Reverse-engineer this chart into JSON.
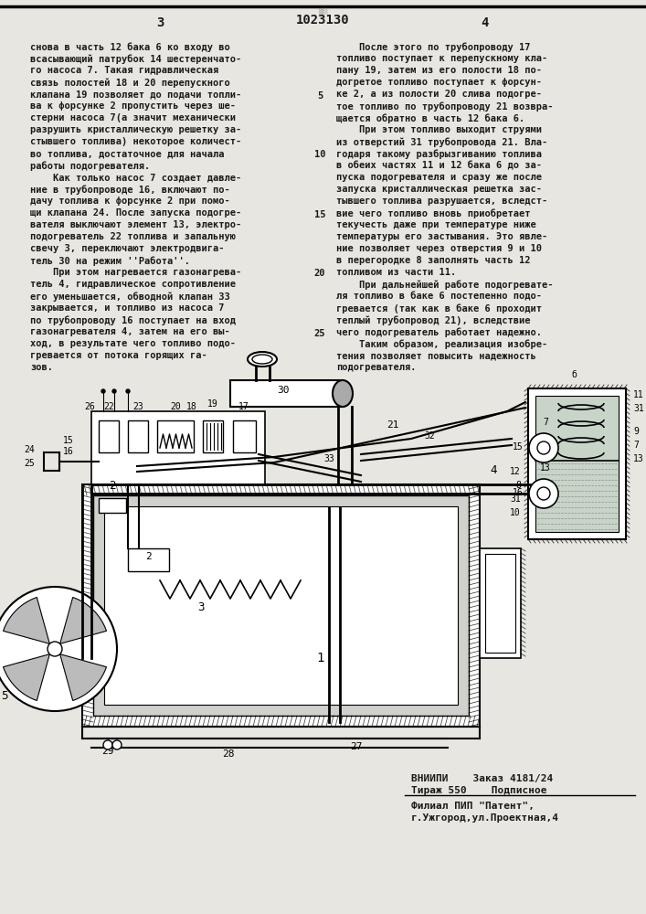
{
  "patent_number": "1023130",
  "page_left": "3",
  "page_right": "4",
  "bg_color": "#e8e6e0",
  "text_color": "#1a1a1a",
  "left_col_lines": [
    "снова в часть 12 бака 6 ко входу во",
    "всасывающий патрубок 14 шестеренчато-",
    "го насоса 7. Такая гидравлическая",
    "связь полостей 18 и 20 перепускного",
    "клапана 19 позволяет до подачи топли-",
    "ва к форсунке 2 пропустить через ше-",
    "стерни насоса 7(а значит механически",
    "разрушить кристаллическую решетку за-",
    "стывшего топлива) некоторое количест-",
    "во топлива, достаточное для начала",
    "работы подогревателя.",
    "    Как только насос 7 создает давле-",
    "ние в трубопроводе 16, включают по-",
    "дачу топлива к форсунке 2 при помо-",
    "щи клапана 24. После запуска подогре-",
    "вателя выключают элемент 13, электро-",
    "подогреватель 22 топлива и запальную",
    "свечу 3, переключают электродвига-",
    "тель 30 на режим ''Работа''.",
    "    При этом нагревается газонагрева-",
    "тель 4, гидравлическое сопротивление",
    "его уменьшается, обводной клапан 33",
    "закрывается, и топливо из насоса 7",
    "по трубопроводу 16 поступает на вход",
    "газонагревателя 4, затем на его вы-",
    "ход, в результате чего топливо подо-",
    "гревается от потока горящих га-",
    "зов."
  ],
  "right_col_lines": [
    "    После этого по трубопроводу 17",
    "топливо поступает к перепускному кла-",
    "пану 19, затем из его полости 18 по-",
    "догретое топливо поступает к форсун-",
    "ке 2, а из полости 20 слива подогре-",
    "тое топливо по трубопроводу 21 возвра-",
    "щается обратно в часть 12 бака 6.",
    "    При этом топливо выходит струями",
    "из отверстий 31 трубопровода 21. Вла-",
    "годаря такому разбрызгиванию топлива",
    "в обеих частях 11 и 12 бака 6 до за-",
    "пуска подогревателя и сразу же после",
    "запуска кристаллическая решетка зас-",
    "тывшего топлива разрушается, вследст-",
    "вие чего топливо вновь приобретает",
    "текучесть даже при температуре ниже",
    "температуры его застывания. Это явле-",
    "ние позволяет через отверстия 9 и 10",
    "в перегородке 8 заполнять часть 12",
    "топливом из части 11.",
    "    При дальнейшей работе подогревате-",
    "ля топливо в баке 6 постепенно подо-",
    "гревается (так как в баке 6 проходит",
    "теплый трубопровод 21), вследствие",
    "чего подогреватель работает надежно.",
    "    Таким образом, реализация изобре-",
    "тения позволяет повысить надежность",
    "подогревателя."
  ],
  "line_nums": [
    5,
    10,
    15,
    20,
    25
  ],
  "line_num_row_indices": [
    4,
    9,
    14,
    19,
    24
  ],
  "footer1": "ВНИИПИ    Заказ 4181/24",
  "footer2": "Тираж 550    Подписное",
  "footer3": "Филиал ПИП \"Патент\",",
  "footer4": "г.Ужгород,ул.Проектная,4"
}
